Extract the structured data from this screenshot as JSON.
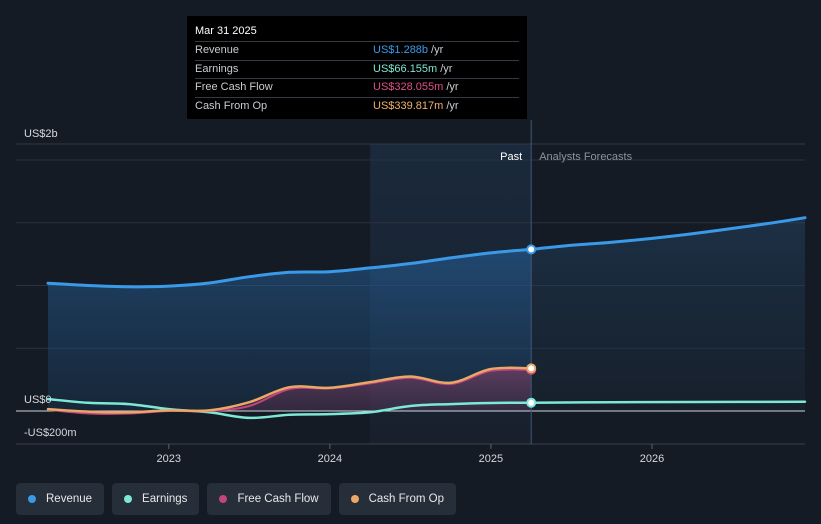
{
  "tooltip": {
    "date": "Mar 31 2025",
    "rows": [
      {
        "label": "Revenue",
        "value": "US$1.288b",
        "unit": "/yr",
        "color": "#3a9ae8"
      },
      {
        "label": "Earnings",
        "value": "US$66.155m",
        "unit": "/yr",
        "color": "#7ee8d6"
      },
      {
        "label": "Free Cash Flow",
        "value": "US$328.055m",
        "unit": "/yr",
        "color": "#e0508a"
      },
      {
        "label": "Cash From Op",
        "value": "US$339.817m",
        "unit": "/yr",
        "color": "#f0b070"
      }
    ]
  },
  "legend": [
    {
      "label": "Revenue",
      "color": "#3a9ae8"
    },
    {
      "label": "Earnings",
      "color": "#7ee8d6"
    },
    {
      "label": "Free Cash Flow",
      "color": "#c2457c"
    },
    {
      "label": "Cash From Op",
      "color": "#e9a865"
    }
  ],
  "chart_data": {
    "type": "line",
    "title": "",
    "xlabel": "",
    "ylabel": "",
    "ylim": [
      -200,
      2000
    ],
    "y_tick_labels": [
      {
        "value": 2000,
        "label": "US$2b"
      },
      {
        "value": 0,
        "label": "US$0"
      },
      {
        "value": -200,
        "label": "-US$200m"
      }
    ],
    "x_range": [
      2022.25,
      2026.95
    ],
    "x_tick_labels": [
      {
        "value": 2023,
        "label": "2023"
      },
      {
        "value": 2024,
        "label": "2024"
      },
      {
        "value": 2025,
        "label": "2025"
      },
      {
        "value": 2026,
        "label": "2026"
      }
    ],
    "past_label": "Past",
    "forecast_label": "Analysts Forecasts",
    "past_start": 2024.25,
    "divider": 2025.25,
    "series": [
      {
        "name": "Revenue",
        "color": "#3a9ae8",
        "fill": true,
        "points": [
          [
            2022.25,
            1018
          ],
          [
            2022.5,
            1000
          ],
          [
            2022.75,
            990
          ],
          [
            2023.0,
            995
          ],
          [
            2023.25,
            1020
          ],
          [
            2023.5,
            1070
          ],
          [
            2023.75,
            1105
          ],
          [
            2024.0,
            1110
          ],
          [
            2024.25,
            1140
          ],
          [
            2024.5,
            1175
          ],
          [
            2024.75,
            1220
          ],
          [
            2025.0,
            1260
          ],
          [
            2025.25,
            1288
          ]
        ],
        "forecast": [
          [
            2025.25,
            1288
          ],
          [
            2025.5,
            1320
          ],
          [
            2025.75,
            1345
          ],
          [
            2026.0,
            1375
          ],
          [
            2026.25,
            1412
          ],
          [
            2026.5,
            1455
          ],
          [
            2026.75,
            1500
          ],
          [
            2026.95,
            1540
          ]
        ]
      },
      {
        "name": "Earnings",
        "color": "#7ee8d6",
        "fill": false,
        "points": [
          [
            2022.25,
            95
          ],
          [
            2022.5,
            65
          ],
          [
            2022.75,
            55
          ],
          [
            2023.0,
            15
          ],
          [
            2023.25,
            -10
          ],
          [
            2023.5,
            -55
          ],
          [
            2023.75,
            -30
          ],
          [
            2024.0,
            -25
          ],
          [
            2024.25,
            -10
          ],
          [
            2024.5,
            40
          ],
          [
            2024.75,
            55
          ],
          [
            2025.0,
            64
          ],
          [
            2025.25,
            66
          ]
        ],
        "forecast": [
          [
            2025.25,
            66
          ],
          [
            2025.75,
            70
          ],
          [
            2026.25,
            72
          ],
          [
            2026.95,
            73
          ]
        ]
      },
      {
        "name": "Free Cash Flow",
        "color": "#c2457c",
        "fill": true,
        "points": [
          [
            2022.25,
            10
          ],
          [
            2022.5,
            -20
          ],
          [
            2022.75,
            -20
          ],
          [
            2023.0,
            0
          ],
          [
            2023.25,
            0
          ],
          [
            2023.5,
            40
          ],
          [
            2023.75,
            175
          ],
          [
            2024.0,
            180
          ],
          [
            2024.25,
            220
          ],
          [
            2024.5,
            265
          ],
          [
            2024.75,
            215
          ],
          [
            2025.0,
            320
          ],
          [
            2025.25,
            328
          ]
        ]
      },
      {
        "name": "Cash From Op",
        "color": "#e9a865",
        "fill": false,
        "points": [
          [
            2022.25,
            15
          ],
          [
            2022.5,
            -5
          ],
          [
            2022.75,
            -10
          ],
          [
            2023.0,
            5
          ],
          [
            2023.25,
            5
          ],
          [
            2023.5,
            70
          ],
          [
            2023.75,
            190
          ],
          [
            2024.0,
            185
          ],
          [
            2024.25,
            230
          ],
          [
            2024.5,
            275
          ],
          [
            2024.75,
            225
          ],
          [
            2025.0,
            335
          ],
          [
            2025.25,
            340
          ]
        ]
      }
    ]
  }
}
